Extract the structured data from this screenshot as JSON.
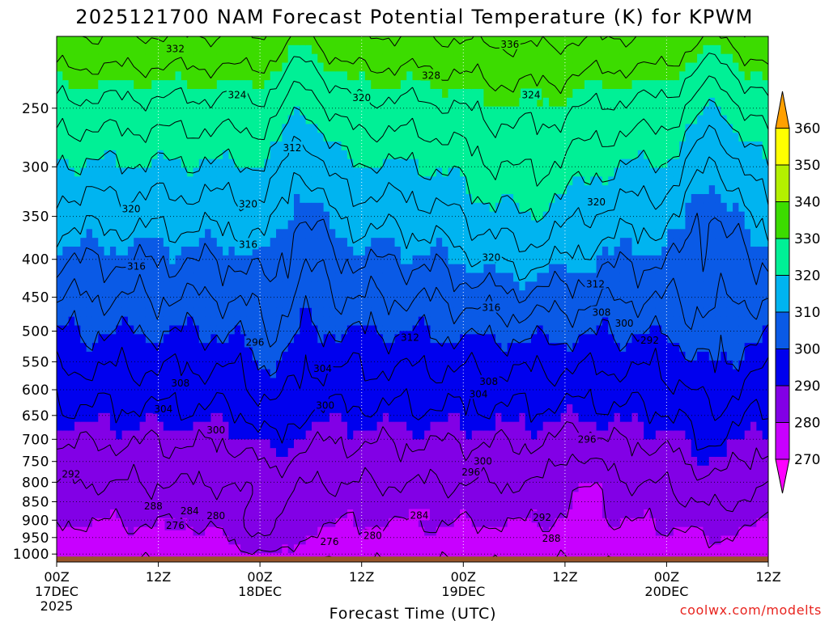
{
  "chart_data": {
    "type": "heatmap",
    "title": "2025121700 NAM Forecast Potential Temperature (K) for KPWM",
    "xlabel": "Forecast Time (UTC)",
    "ylabel": "",
    "x_ticks": [
      {
        "hour": 0,
        "label": "00Z",
        "sub": "17DEC",
        "sub2": "2025"
      },
      {
        "hour": 12,
        "label": "12Z",
        "sub": "",
        "sub2": ""
      },
      {
        "hour": 24,
        "label": "00Z",
        "sub": "18DEC",
        "sub2": ""
      },
      {
        "hour": 36,
        "label": "12Z",
        "sub": "",
        "sub2": ""
      },
      {
        "hour": 48,
        "label": "00Z",
        "sub": "19DEC",
        "sub2": ""
      },
      {
        "hour": 60,
        "label": "12Z",
        "sub": "",
        "sub2": ""
      },
      {
        "hour": 72,
        "label": "00Z",
        "sub": "20DEC",
        "sub2": ""
      },
      {
        "hour": 84,
        "label": "12Z",
        "sub": "",
        "sub2": ""
      }
    ],
    "xlim": [
      0,
      84
    ],
    "y_scale": "log",
    "y_ticks": [
      250,
      300,
      350,
      400,
      450,
      500,
      550,
      600,
      650,
      700,
      750,
      800,
      850,
      900,
      950,
      1000
    ],
    "ylim": [
      1025,
      200
    ],
    "colorbar": {
      "labels": [
        270,
        280,
        290,
        300,
        310,
        320,
        330,
        340,
        350,
        360
      ],
      "levels": [
        {
          "min": 260,
          "max": 270,
          "color": "#ff00ff"
        },
        {
          "min": 270,
          "max": 280,
          "color": "#c800ff"
        },
        {
          "min": 280,
          "max": 290,
          "color": "#8200e6"
        },
        {
          "min": 290,
          "max": 300,
          "color": "#0000ee"
        },
        {
          "min": 300,
          "max": 310,
          "color": "#0a5ae6"
        },
        {
          "min": 310,
          "max": 320,
          "color": "#00b4f0"
        },
        {
          "min": 320,
          "max": 330,
          "color": "#00f096"
        },
        {
          "min": 330,
          "max": 340,
          "color": "#3cdc00"
        },
        {
          "min": 340,
          "max": 350,
          "color": "#b4f000"
        },
        {
          "min": 350,
          "max": 360,
          "color": "#ffff00"
        },
        {
          "min": 360,
          "max": 370,
          "color": "#ffa000"
        }
      ]
    },
    "contour_interval": 4,
    "contour_labels": [
      {
        "v": 332,
        "h": 14.0,
        "p": 208
      },
      {
        "v": 336,
        "h": 53.5,
        "p": 205
      },
      {
        "v": 324,
        "h": 21.3,
        "p": 240
      },
      {
        "v": 328,
        "h": 44.2,
        "p": 226
      },
      {
        "v": 320,
        "h": 36.0,
        "p": 242
      },
      {
        "v": 324,
        "h": 56.0,
        "p": 240
      },
      {
        "v": 312,
        "h": 27.8,
        "p": 283
      },
      {
        "v": 320,
        "h": 8.8,
        "p": 342
      },
      {
        "v": 320,
        "h": 22.6,
        "p": 337
      },
      {
        "v": 316,
        "h": 22.6,
        "p": 382
      },
      {
        "v": 320,
        "h": 63.7,
        "p": 335
      },
      {
        "v": 316,
        "h": 9.4,
        "p": 409
      },
      {
        "v": 320,
        "h": 51.3,
        "p": 398
      },
      {
        "v": 312,
        "h": 63.6,
        "p": 432
      },
      {
        "v": 316,
        "h": 51.3,
        "p": 465
      },
      {
        "v": 308,
        "h": 64.3,
        "p": 472
      },
      {
        "v": 300,
        "h": 67.0,
        "p": 488
      },
      {
        "v": 296,
        "h": 23.4,
        "p": 518
      },
      {
        "v": 292,
        "h": 70.0,
        "p": 515
      },
      {
        "v": 312,
        "h": 41.7,
        "p": 510
      },
      {
        "v": 304,
        "h": 31.4,
        "p": 562
      },
      {
        "v": 308,
        "h": 14.6,
        "p": 588
      },
      {
        "v": 308,
        "h": 51.0,
        "p": 585
      },
      {
        "v": 304,
        "h": 49.8,
        "p": 608
      },
      {
        "v": 304,
        "h": 12.6,
        "p": 637
      },
      {
        "v": 300,
        "h": 31.7,
        "p": 630
      },
      {
        "v": 300,
        "h": 18.8,
        "p": 680
      },
      {
        "v": 296,
        "h": 62.6,
        "p": 700
      },
      {
        "v": 300,
        "h": 50.3,
        "p": 750
      },
      {
        "v": 296,
        "h": 48.9,
        "p": 775
      },
      {
        "v": 292,
        "h": 1.7,
        "p": 780
      },
      {
        "v": 288,
        "h": 11.4,
        "p": 862
      },
      {
        "v": 284,
        "h": 15.7,
        "p": 875
      },
      {
        "v": 280,
        "h": 18.8,
        "p": 888
      },
      {
        "v": 276,
        "h": 14.0,
        "p": 915
      },
      {
        "v": 284,
        "h": 42.8,
        "p": 887
      },
      {
        "v": 292,
        "h": 57.3,
        "p": 893
      },
      {
        "v": 280,
        "h": 37.3,
        "p": 945
      },
      {
        "v": 276,
        "h": 32.2,
        "p": 962
      },
      {
        "v": 288,
        "h": 58.4,
        "p": 953
      }
    ]
  },
  "credit": "coolwx.com/modelts",
  "colors": {
    "ground": "#9a5528",
    "contour": "#000000",
    "credit": "#e8241f"
  }
}
